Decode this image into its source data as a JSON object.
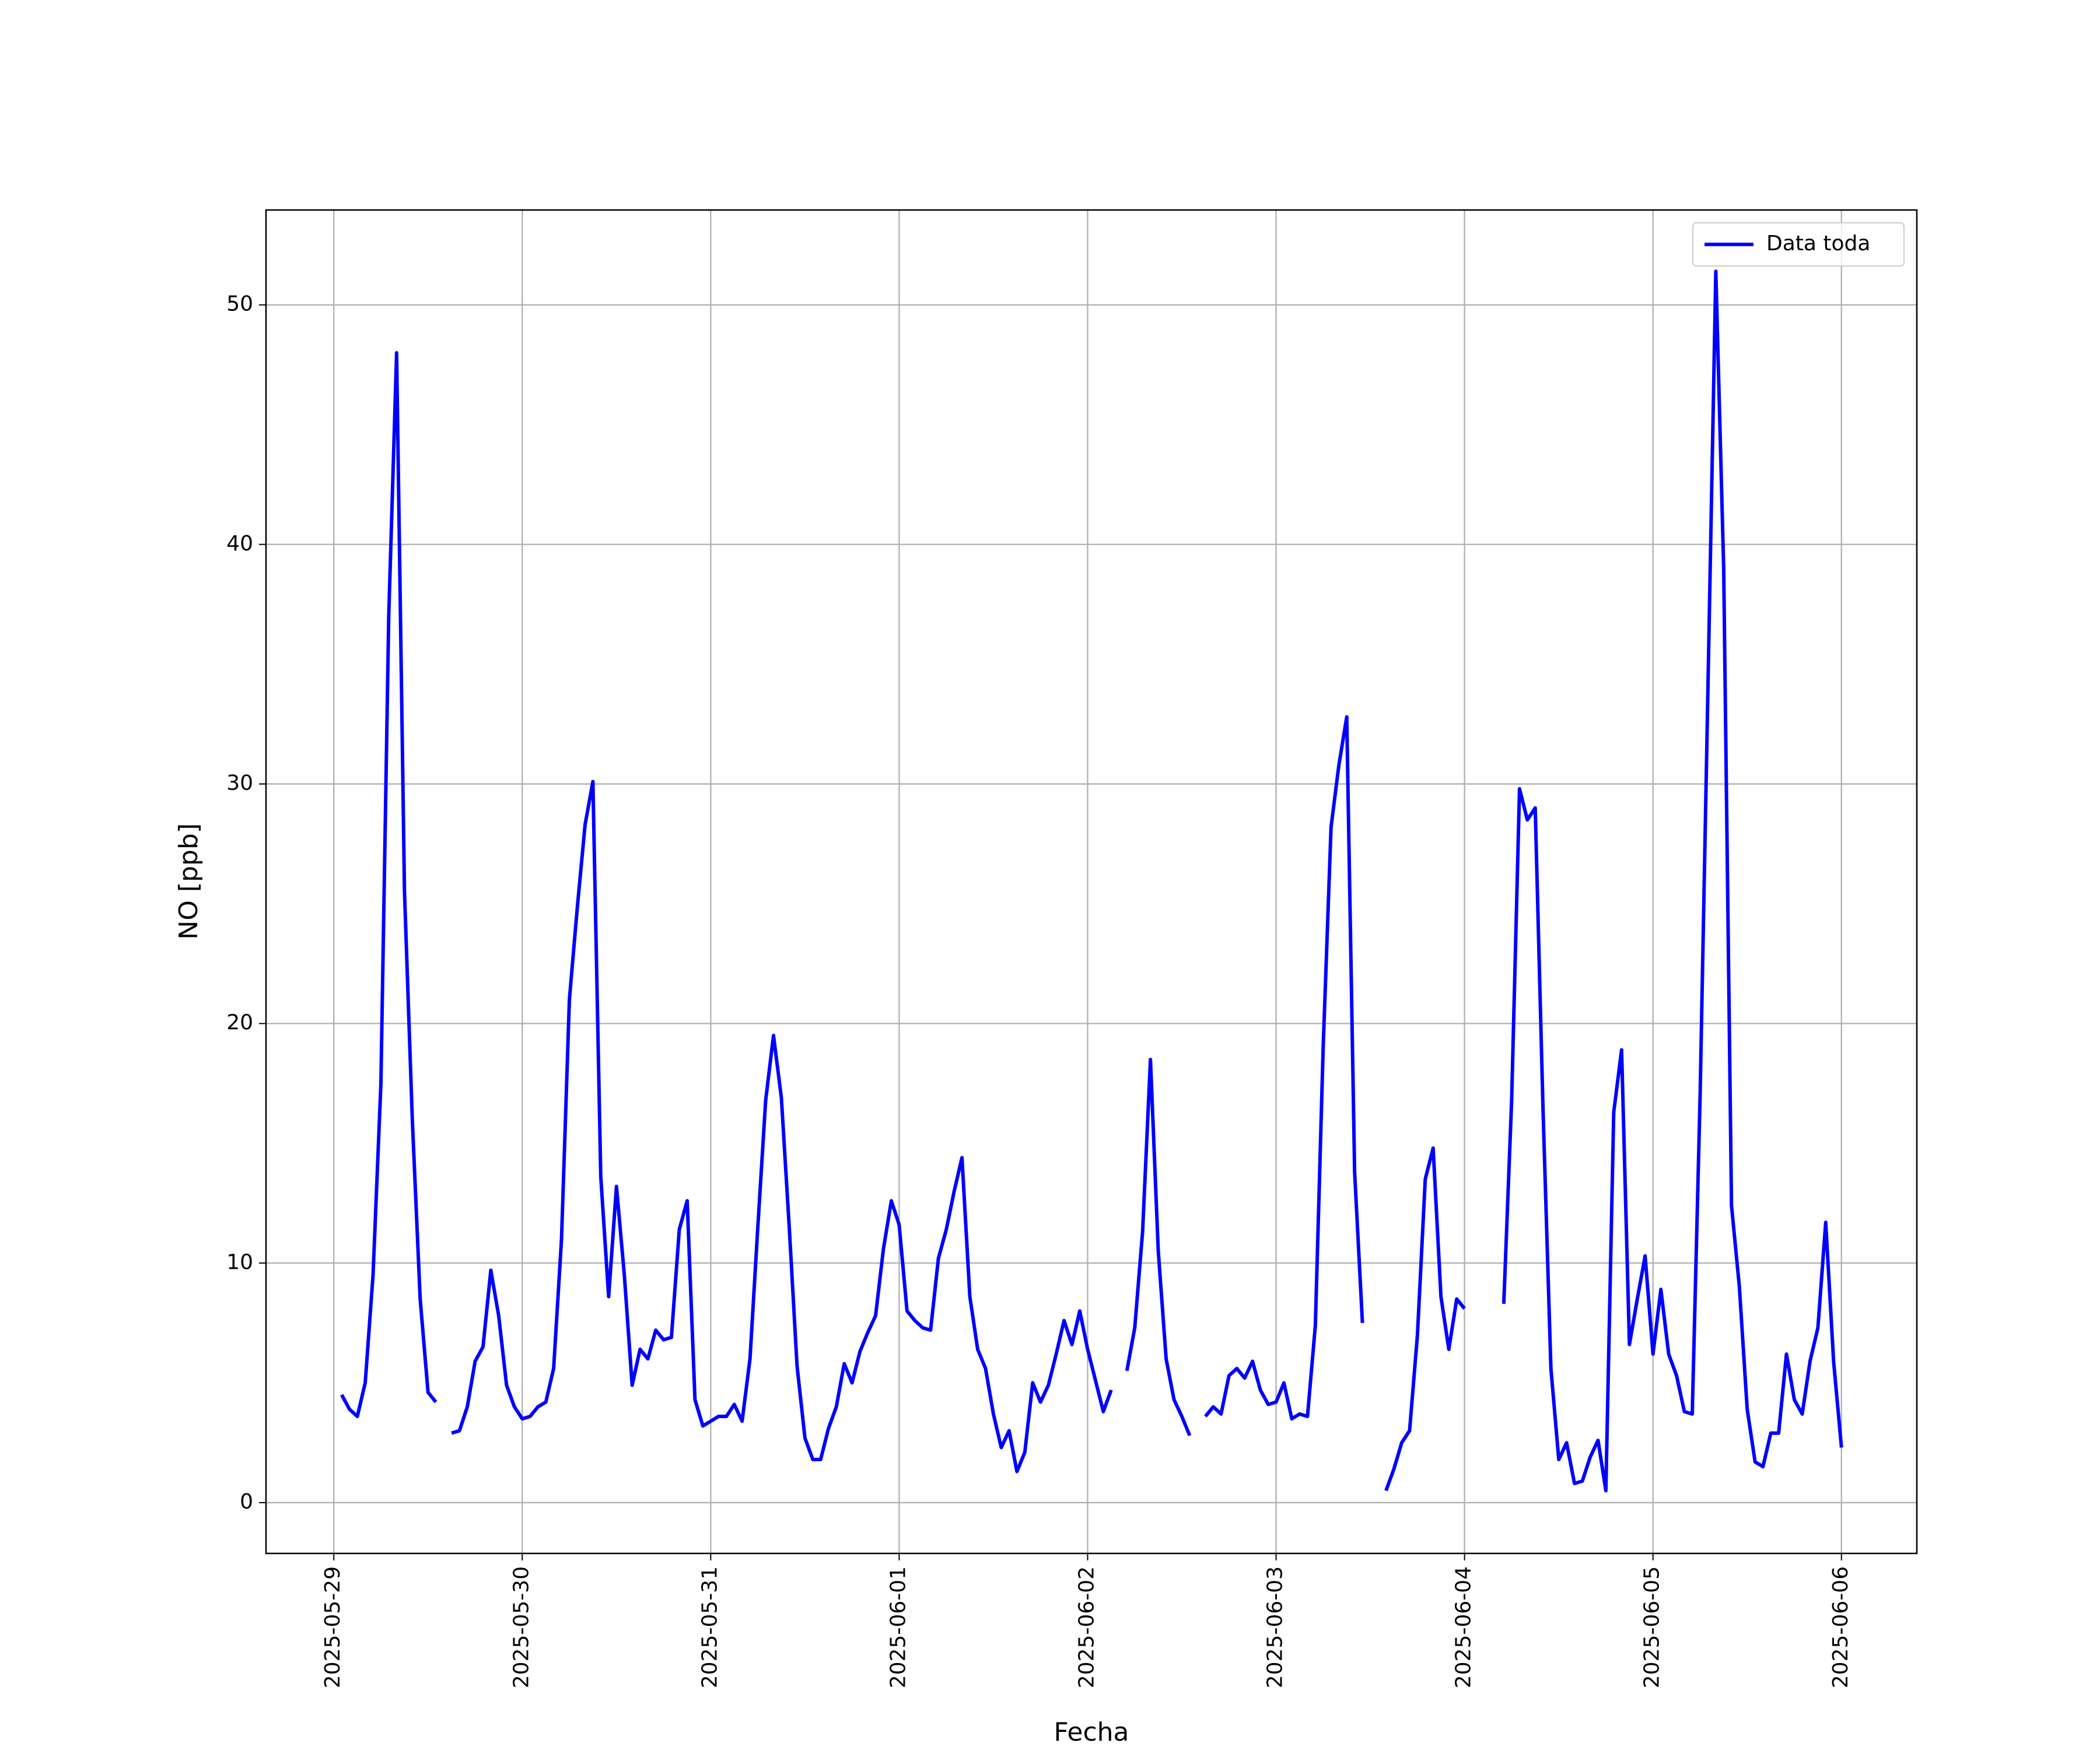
{
  "chart_data": {
    "type": "line",
    "x": [
      "2025-05-29 01:00",
      "2025-05-29 02:00",
      "2025-05-29 03:00",
      "2025-05-29 04:00",
      "2025-05-29 05:00",
      "2025-05-29 06:00",
      "2025-05-29 07:00",
      "2025-05-29 08:00",
      "2025-05-29 09:00",
      "2025-05-29 10:00",
      "2025-05-29 11:00",
      "2025-05-29 12:00",
      "2025-05-29 13:00",
      "2025-05-29 14:00",
      "2025-05-29 15:00",
      "2025-05-29 16:00",
      "2025-05-29 17:00",
      "2025-05-29 18:00",
      "2025-05-29 19:00",
      "2025-05-29 20:00",
      "2025-05-29 21:00",
      "2025-05-29 22:00",
      "2025-05-29 23:00",
      "2025-05-30 00:00",
      "2025-05-30 01:00",
      "2025-05-30 02:00",
      "2025-05-30 03:00",
      "2025-05-30 04:00",
      "2025-05-30 05:00",
      "2025-05-30 06:00",
      "2025-05-30 07:00",
      "2025-05-30 08:00",
      "2025-05-30 09:00",
      "2025-05-30 10:00",
      "2025-05-30 11:00",
      "2025-05-30 12:00",
      "2025-05-30 13:00",
      "2025-05-30 14:00",
      "2025-05-30 15:00",
      "2025-05-30 16:00",
      "2025-05-30 17:00",
      "2025-05-30 18:00",
      "2025-05-30 19:00",
      "2025-05-30 20:00",
      "2025-05-30 21:00",
      "2025-05-30 22:00",
      "2025-05-30 23:00",
      "2025-05-31 00:00",
      "2025-05-31 01:00",
      "2025-05-31 02:00",
      "2025-05-31 03:00",
      "2025-05-31 04:00",
      "2025-05-31 05:00",
      "2025-05-31 06:00",
      "2025-05-31 07:00",
      "2025-05-31 08:00",
      "2025-05-31 09:00",
      "2025-05-31 10:00",
      "2025-05-31 11:00",
      "2025-05-31 12:00",
      "2025-05-31 13:00",
      "2025-05-31 14:00",
      "2025-05-31 15:00",
      "2025-05-31 16:00",
      "2025-05-31 17:00",
      "2025-05-31 18:00",
      "2025-05-31 19:00",
      "2025-05-31 20:00",
      "2025-05-31 21:00",
      "2025-05-31 22:00",
      "2025-05-31 23:00",
      "2025-06-01 00:00",
      "2025-06-01 01:00",
      "2025-06-01 02:00",
      "2025-06-01 03:00",
      "2025-06-01 04:00",
      "2025-06-01 05:00",
      "2025-06-01 06:00",
      "2025-06-01 07:00",
      "2025-06-01 08:00",
      "2025-06-01 09:00",
      "2025-06-01 10:00",
      "2025-06-01 11:00",
      "2025-06-01 12:00",
      "2025-06-01 13:00",
      "2025-06-01 14:00",
      "2025-06-01 15:00",
      "2025-06-01 16:00",
      "2025-06-01 17:00",
      "2025-06-01 18:00",
      "2025-06-01 19:00",
      "2025-06-01 20:00",
      "2025-06-01 21:00",
      "2025-06-01 22:00",
      "2025-06-01 23:00",
      "2025-06-02 00:00",
      "2025-06-02 01:00",
      "2025-06-02 02:00",
      "2025-06-02 03:00",
      "2025-06-02 04:00",
      "2025-06-02 05:00",
      "2025-06-02 06:00",
      "2025-06-02 07:00",
      "2025-06-02 08:00",
      "2025-06-02 09:00",
      "2025-06-02 10:00",
      "2025-06-02 11:00",
      "2025-06-02 12:00",
      "2025-06-02 13:00",
      "2025-06-02 14:00",
      "2025-06-02 15:00",
      "2025-06-02 16:00",
      "2025-06-02 17:00",
      "2025-06-02 18:00",
      "2025-06-02 19:00",
      "2025-06-02 20:00",
      "2025-06-02 21:00",
      "2025-06-02 22:00",
      "2025-06-02 23:00",
      "2025-06-03 00:00",
      "2025-06-03 01:00",
      "2025-06-03 02:00",
      "2025-06-03 03:00",
      "2025-06-03 04:00",
      "2025-06-03 05:00",
      "2025-06-03 06:00",
      "2025-06-03 07:00",
      "2025-06-03 08:00",
      "2025-06-03 09:00",
      "2025-06-03 10:00",
      "2025-06-03 11:00",
      "2025-06-03 12:00",
      "2025-06-03 13:00",
      "2025-06-03 14:00",
      "2025-06-03 15:00",
      "2025-06-03 16:00",
      "2025-06-03 17:00",
      "2025-06-03 18:00",
      "2025-06-03 19:00",
      "2025-06-03 20:00",
      "2025-06-03 21:00",
      "2025-06-03 22:00",
      "2025-06-03 23:00",
      "2025-06-04 00:00",
      "2025-06-04 01:00",
      "2025-06-04 02:00",
      "2025-06-04 03:00",
      "2025-06-04 04:00",
      "2025-06-04 05:00",
      "2025-06-04 06:00",
      "2025-06-04 07:00",
      "2025-06-04 08:00",
      "2025-06-04 09:00",
      "2025-06-04 10:00",
      "2025-06-04 11:00",
      "2025-06-04 12:00",
      "2025-06-04 13:00",
      "2025-06-04 14:00",
      "2025-06-04 15:00",
      "2025-06-04 16:00",
      "2025-06-04 17:00",
      "2025-06-04 18:00",
      "2025-06-04 19:00",
      "2025-06-04 20:00",
      "2025-06-04 21:00",
      "2025-06-04 22:00",
      "2025-06-04 23:00",
      "2025-06-05 00:00",
      "2025-06-05 01:00",
      "2025-06-05 02:00",
      "2025-06-05 03:00",
      "2025-06-05 04:00",
      "2025-06-05 05:00",
      "2025-06-05 06:00",
      "2025-06-05 07:00",
      "2025-06-05 08:00",
      "2025-06-05 09:00",
      "2025-06-05 10:00",
      "2025-06-05 11:00",
      "2025-06-05 12:00",
      "2025-06-05 13:00",
      "2025-06-05 14:00",
      "2025-06-05 15:00",
      "2025-06-05 16:00",
      "2025-06-05 17:00",
      "2025-06-05 18:00",
      "2025-06-05 19:00",
      "2025-06-05 20:00",
      "2025-06-05 21:00",
      "2025-06-05 22:00",
      "2025-06-05 23:00",
      "2025-06-06 00:00"
    ],
    "series": [
      {
        "name": "Data toda",
        "color": "#0000ff",
        "values": [
          4.5,
          3.9,
          3.6,
          5.0,
          9.5,
          17.5,
          37,
          48,
          25.5,
          16,
          8.5,
          4.6,
          4.2,
          null,
          2.9,
          3.0,
          4.0,
          5.9,
          6.5,
          9.7,
          7.8,
          4.9,
          4.0,
          3.5,
          3.6,
          4.0,
          4.2,
          5.6,
          11,
          21,
          24.8,
          28.3,
          30.1,
          13.6,
          8.6,
          13.2,
          9.5,
          4.9,
          6.4,
          6.0,
          7.2,
          6.8,
          6.9,
          11.4,
          12.6,
          4.3,
          3.2,
          3.4,
          3.6,
          3.6,
          4.1,
          3.4,
          6.0,
          11.5,
          16.8,
          19.5,
          16.9,
          11.5,
          5.7,
          2.7,
          1.8,
          1.8,
          3.1,
          4.0,
          5.8,
          5.0,
          6.3,
          7.1,
          7.8,
          10.6,
          12.6,
          11.6,
          8.0,
          7.6,
          7.3,
          7.2,
          10.2,
          11.4,
          13.0,
          14.4,
          8.6,
          6.4,
          5.6,
          3.7,
          2.3,
          3.0,
          1.3,
          2.1,
          5.0,
          4.2,
          4.9,
          6.2,
          7.6,
          6.6,
          8.0,
          6.4,
          5.1,
          3.8,
          4.7,
          null,
          5.5,
          7.3,
          11.3,
          18.5,
          10.5,
          6.0,
          4.3,
          3.6,
          2.8,
          null,
          3.6,
          4.0,
          3.7,
          5.3,
          5.6,
          5.2,
          5.9,
          4.7,
          4.1,
          4.2,
          5.0,
          3.5,
          3.7,
          3.6,
          7.4,
          19,
          28.2,
          30.8,
          32.8,
          13.8,
          7.5,
          null,
          null,
          0.5,
          1.4,
          2.5,
          3.0,
          7.0,
          13.5,
          14.8,
          8.6,
          6.4,
          8.5,
          8.1,
          null,
          null,
          null,
          null,
          8.3,
          16.8,
          29.8,
          28.5,
          29.0,
          16.4,
          5.6,
          1.8,
          2.5,
          0.8,
          0.9,
          1.9,
          2.6,
          0.5,
          16.3,
          18.9,
          6.6,
          8.5,
          10.3,
          6.2,
          8.9,
          6.2,
          5.3,
          3.8,
          3.7,
          17,
          34,
          51.4,
          39,
          12.4,
          9.0,
          3.9,
          1.7,
          1.5,
          2.9,
          2.9,
          6.2,
          4.3,
          3.7,
          5.9,
          7.3,
          11.7,
          5.9,
          2.3
        ]
      }
    ],
    "xlabel": "Fecha",
    "ylabel": "NO [ppb]",
    "xlim": [
      "2025-05-28 15:22",
      "2025-06-06 09:36"
    ],
    "xticks": [
      "2025-05-29",
      "2025-05-30",
      "2025-05-31",
      "2025-06-01",
      "2025-06-02",
      "2025-06-03",
      "2025-06-04",
      "2025-06-05",
      "2025-06-06"
    ],
    "ylim": [
      -2.12,
      53.96
    ],
    "yticks": [
      0,
      10,
      20,
      30,
      40,
      50
    ],
    "grid": true,
    "legend": "upper right"
  }
}
